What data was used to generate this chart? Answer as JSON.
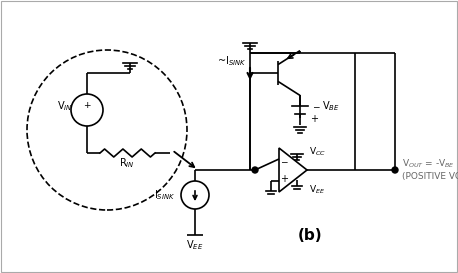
{
  "bg_color": "#ffffff",
  "line_color": "#000000",
  "fig_width": 4.58,
  "fig_height": 2.73,
  "dpi": 100,
  "labels": {
    "VIN": "V$_{IN}$",
    "RIN": "R$_{IN}$",
    "ISINK_label": "I$_{SINK}$",
    "ISINK_arrow": "~I$_{SINK}$",
    "VEE_bot": "V$_{EE}$",
    "VBE": "V$_{BE}$",
    "VCC": "V$_{CC}$",
    "VEE_op": "V$_{EE}$",
    "VOUT": "V$_{OUT}$ = -V$_{BE}$",
    "POSITIVE": "(POSITIVE VOLTAGE)",
    "b_label": "(b)"
  }
}
